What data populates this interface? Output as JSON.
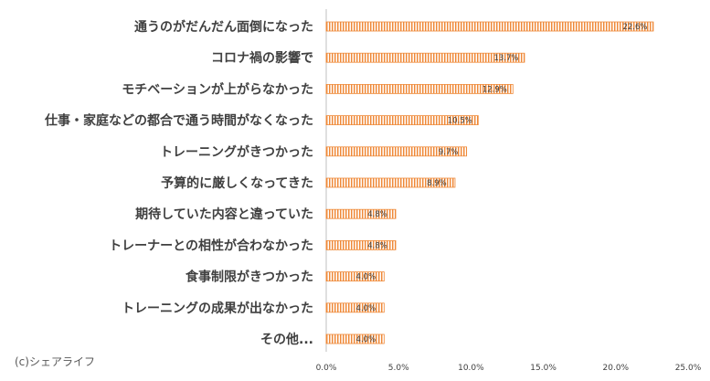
{
  "credit": "(c)シェアライフ",
  "colors": {
    "bar": "#ef8a3a",
    "stripe": "#ffffff",
    "axis": "#bfbfbf",
    "text": "#404040"
  },
  "chart_data": {
    "type": "bar",
    "orientation": "horizontal",
    "categories": [
      "通うのがだんだん面倒になった",
      "コロナ禍の影響で",
      "モチベーションが上がらなかった",
      "仕事・家庭などの都合で通う時間がなくなった",
      "トレーニングがきつかった",
      "予算的に厳しくなってきた",
      "期待していた内容と違っていた",
      "トレーナーとの相性が合わなかった",
      "食事制限がきつかった",
      "トレーニングの成果が出なかった",
      "その他..."
    ],
    "values": [
      22.6,
      13.7,
      12.9,
      10.5,
      9.7,
      8.9,
      4.8,
      4.8,
      4.0,
      4.0,
      4.0
    ],
    "data_labels": [
      "22.6%",
      "13.7%",
      "12.9%",
      "10.5%",
      "9.7%",
      "8.9%",
      "4.8%",
      "4.8%",
      "4.0%",
      "4.0%",
      "4.0%"
    ],
    "xlim": [
      0,
      25
    ],
    "xticks": [
      0,
      5,
      10,
      15,
      20,
      25
    ],
    "xtick_labels": [
      "0.0%",
      "5.0%",
      "10.0%",
      "15.0%",
      "20.0%",
      "25.0%"
    ],
    "grid": false,
    "legend": "none"
  }
}
